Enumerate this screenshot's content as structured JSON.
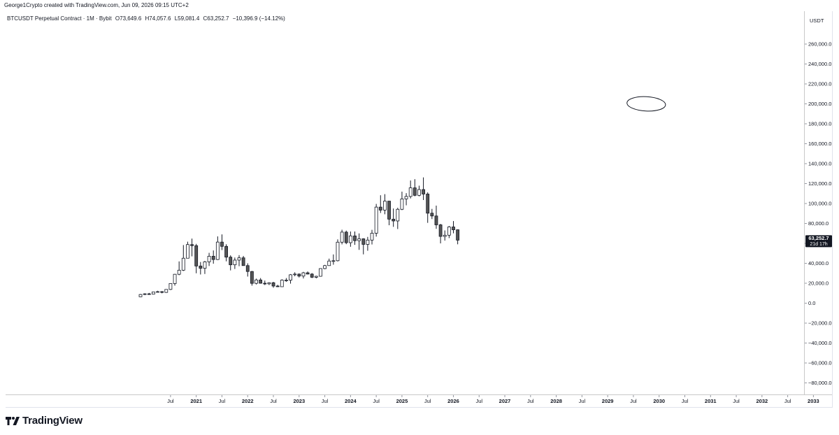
{
  "header": {
    "credit": "George1Crypto created with TradingView.com, Jun 09, 2026 09:15 UTC+2"
  },
  "legend": {
    "symbol": "BTCUSDT Perpetual Contract · 1M · Bybit",
    "open": "O73,649.6",
    "high": "H74,057.6",
    "low": "L59,081.4",
    "close": "C63,252.7",
    "change": "−10,396.9 (−14.12%)"
  },
  "price_axis": {
    "unit": "USDT",
    "last_price": "63,252.7",
    "countdown": "21d 17h"
  },
  "brand": {
    "name": "TradingView"
  },
  "colors": {
    "accent": "#131722",
    "up_fill": "#ffffff",
    "down_fill": "#555555",
    "axis_line": "#c8c8c8"
  },
  "chart_data": {
    "type": "candlestick",
    "ylim": [
      -90000,
      270000
    ],
    "y_ticks": [
      260000,
      240000,
      220000,
      200000,
      180000,
      160000,
      140000,
      120000,
      100000,
      80000,
      60000,
      40000,
      20000,
      0,
      -20000,
      -40000,
      -60000,
      -80000
    ],
    "y_tick_labels": [
      "260,000.0",
      "240,000.0",
      "220,000.0",
      "200,000.0",
      "180,000.0",
      "160,000.0",
      "140,000.0",
      "120,000.0",
      "100,000.0",
      "80,000.0",
      "60,000.0",
      "40,000.0",
      "20,000.0",
      "0.0",
      "−20,000.0",
      "−40,000.0",
      "−60,000.0",
      "−80,000.0"
    ],
    "x_start": "2020-04",
    "x_end": "2033-03",
    "x_ticks": [
      {
        "label": "Jul",
        "date": "2020-07"
      },
      {
        "label": "2021",
        "date": "2021-01"
      },
      {
        "label": "Jul",
        "date": "2021-07"
      },
      {
        "label": "2022",
        "date": "2022-01"
      },
      {
        "label": "Jul",
        "date": "2022-07"
      },
      {
        "label": "2023",
        "date": "2023-01"
      },
      {
        "label": "Jul",
        "date": "2023-07"
      },
      {
        "label": "2024",
        "date": "2024-01"
      },
      {
        "label": "Jul",
        "date": "2024-07"
      },
      {
        "label": "2025",
        "date": "2025-01"
      },
      {
        "label": "Jul",
        "date": "2025-07"
      },
      {
        "label": "2026",
        "date": "2026-01"
      },
      {
        "label": "Jul",
        "date": "2026-07"
      },
      {
        "label": "2027",
        "date": "2027-01"
      },
      {
        "label": "Jul",
        "date": "2027-07"
      },
      {
        "label": "2028",
        "date": "2028-01"
      },
      {
        "label": "Jul",
        "date": "2028-07"
      },
      {
        "label": "2029",
        "date": "2029-01"
      },
      {
        "label": "Jul",
        "date": "2029-07"
      },
      {
        "label": "2030",
        "date": "2030-01"
      },
      {
        "label": "Jul",
        "date": "2030-07"
      },
      {
        "label": "2031",
        "date": "2031-01"
      },
      {
        "label": "Jul",
        "date": "2031-07"
      },
      {
        "label": "2032",
        "date": "2032-01"
      },
      {
        "label": "Jul",
        "date": "2032-07"
      },
      {
        "label": "2033",
        "date": "2033-01"
      }
    ],
    "candles": [
      {
        "date": "2020-04",
        "o": 6400,
        "h": 9200,
        "l": 6200,
        "c": 8700
      },
      {
        "date": "2020-05",
        "o": 8700,
        "h": 10000,
        "l": 8100,
        "c": 9400
      },
      {
        "date": "2020-06",
        "o": 9400,
        "h": 10300,
        "l": 8900,
        "c": 9100
      },
      {
        "date": "2020-07",
        "o": 9100,
        "h": 11400,
        "l": 8900,
        "c": 11300
      },
      {
        "date": "2020-08",
        "o": 11300,
        "h": 12400,
        "l": 10600,
        "c": 11600
      },
      {
        "date": "2020-09",
        "o": 11600,
        "h": 12000,
        "l": 9900,
        "c": 10800
      },
      {
        "date": "2020-10",
        "o": 10800,
        "h": 14000,
        "l": 10400,
        "c": 13800
      },
      {
        "date": "2020-11",
        "o": 13800,
        "h": 19900,
        "l": 13200,
        "c": 19700
      },
      {
        "date": "2020-12",
        "o": 19700,
        "h": 29300,
        "l": 17600,
        "c": 29000
      },
      {
        "date": "2021-01",
        "o": 29000,
        "h": 41900,
        "l": 28100,
        "c": 33100
      },
      {
        "date": "2021-02",
        "o": 33100,
        "h": 58300,
        "l": 32300,
        "c": 45100
      },
      {
        "date": "2021-03",
        "o": 45100,
        "h": 61700,
        "l": 44900,
        "c": 58800
      },
      {
        "date": "2021-04",
        "o": 58800,
        "h": 64800,
        "l": 47000,
        "c": 57700
      },
      {
        "date": "2021-05",
        "o": 57700,
        "h": 59500,
        "l": 30000,
        "c": 37300
      },
      {
        "date": "2021-06",
        "o": 37300,
        "h": 41300,
        "l": 28800,
        "c": 35000
      },
      {
        "date": "2021-07",
        "o": 35000,
        "h": 42400,
        "l": 29300,
        "c": 41500
      },
      {
        "date": "2021-08",
        "o": 41500,
        "h": 50500,
        "l": 37300,
        "c": 47100
      },
      {
        "date": "2021-09",
        "o": 47100,
        "h": 52900,
        "l": 39600,
        "c": 43800
      },
      {
        "date": "2021-10",
        "o": 43800,
        "h": 67000,
        "l": 43300,
        "c": 61300
      },
      {
        "date": "2021-11",
        "o": 61300,
        "h": 69000,
        "l": 53300,
        "c": 57000
      },
      {
        "date": "2021-12",
        "o": 57000,
        "h": 59100,
        "l": 42000,
        "c": 46200
      },
      {
        "date": "2022-01",
        "o": 46200,
        "h": 48000,
        "l": 32900,
        "c": 38500
      },
      {
        "date": "2022-02",
        "o": 38500,
        "h": 45800,
        "l": 34300,
        "c": 43200
      },
      {
        "date": "2022-03",
        "o": 43200,
        "h": 48200,
        "l": 37100,
        "c": 45500
      },
      {
        "date": "2022-04",
        "o": 45500,
        "h": 47400,
        "l": 37600,
        "c": 37700
      },
      {
        "date": "2022-05",
        "o": 37700,
        "h": 40000,
        "l": 26700,
        "c": 31800
      },
      {
        "date": "2022-06",
        "o": 31800,
        "h": 32300,
        "l": 17600,
        "c": 19900
      },
      {
        "date": "2022-07",
        "o": 19900,
        "h": 24600,
        "l": 18800,
        "c": 23300
      },
      {
        "date": "2022-08",
        "o": 23300,
        "h": 25200,
        "l": 19600,
        "c": 20000
      },
      {
        "date": "2022-09",
        "o": 20000,
        "h": 22700,
        "l": 18200,
        "c": 19400
      },
      {
        "date": "2022-10",
        "o": 19400,
        "h": 21000,
        "l": 18200,
        "c": 20500
      },
      {
        "date": "2022-11",
        "o": 20500,
        "h": 21400,
        "l": 15500,
        "c": 17200
      },
      {
        "date": "2022-12",
        "o": 17200,
        "h": 18400,
        "l": 16300,
        "c": 16500
      },
      {
        "date": "2023-01",
        "o": 16500,
        "h": 23900,
        "l": 16500,
        "c": 23100
      },
      {
        "date": "2023-02",
        "o": 23100,
        "h": 25200,
        "l": 21400,
        "c": 23100
      },
      {
        "date": "2023-03",
        "o": 23100,
        "h": 29200,
        "l": 19600,
        "c": 28500
      },
      {
        "date": "2023-04",
        "o": 28500,
        "h": 31000,
        "l": 27000,
        "c": 29200
      },
      {
        "date": "2023-05",
        "o": 29200,
        "h": 29800,
        "l": 25800,
        "c": 27200
      },
      {
        "date": "2023-06",
        "o": 27200,
        "h": 31400,
        "l": 24800,
        "c": 30500
      },
      {
        "date": "2023-07",
        "o": 30500,
        "h": 31800,
        "l": 28900,
        "c": 29200
      },
      {
        "date": "2023-08",
        "o": 29200,
        "h": 30200,
        "l": 25200,
        "c": 26000
      },
      {
        "date": "2023-09",
        "o": 26000,
        "h": 27500,
        "l": 24900,
        "c": 27000
      },
      {
        "date": "2023-10",
        "o": 27000,
        "h": 35000,
        "l": 26600,
        "c": 34700
      },
      {
        "date": "2023-11",
        "o": 34700,
        "h": 38400,
        "l": 34100,
        "c": 37700
      },
      {
        "date": "2023-12",
        "o": 37700,
        "h": 44700,
        "l": 37600,
        "c": 42300
      },
      {
        "date": "2024-01",
        "o": 42300,
        "h": 48900,
        "l": 38600,
        "c": 42600
      },
      {
        "date": "2024-02",
        "o": 42600,
        "h": 64000,
        "l": 41900,
        "c": 61200
      },
      {
        "date": "2024-03",
        "o": 61200,
        "h": 73700,
        "l": 59000,
        "c": 71300
      },
      {
        "date": "2024-04",
        "o": 71300,
        "h": 72800,
        "l": 59200,
        "c": 60700
      },
      {
        "date": "2024-05",
        "o": 60700,
        "h": 71900,
        "l": 56600,
        "c": 67500
      },
      {
        "date": "2024-06",
        "o": 67500,
        "h": 71900,
        "l": 58500,
        "c": 62700
      },
      {
        "date": "2024-07",
        "o": 62700,
        "h": 70000,
        "l": 53500,
        "c": 64600
      },
      {
        "date": "2024-08",
        "o": 64600,
        "h": 65100,
        "l": 49000,
        "c": 59000
      },
      {
        "date": "2024-09",
        "o": 59000,
        "h": 66500,
        "l": 52600,
        "c": 63300
      },
      {
        "date": "2024-10",
        "o": 63300,
        "h": 73600,
        "l": 58900,
        "c": 70200
      },
      {
        "date": "2024-11",
        "o": 70200,
        "h": 99600,
        "l": 66800,
        "c": 96400
      },
      {
        "date": "2024-12",
        "o": 96400,
        "h": 108300,
        "l": 90500,
        "c": 93400
      },
      {
        "date": "2025-01",
        "o": 93400,
        "h": 109400,
        "l": 89200,
        "c": 102400
      },
      {
        "date": "2025-02",
        "o": 102400,
        "h": 102500,
        "l": 78200,
        "c": 84300
      },
      {
        "date": "2025-03",
        "o": 84300,
        "h": 95000,
        "l": 76600,
        "c": 82500
      },
      {
        "date": "2025-04",
        "o": 82500,
        "h": 95700,
        "l": 74400,
        "c": 94200
      },
      {
        "date": "2025-05",
        "o": 94200,
        "h": 111900,
        "l": 93400,
        "c": 104600
      },
      {
        "date": "2025-06",
        "o": 104600,
        "h": 110400,
        "l": 98200,
        "c": 107100
      },
      {
        "date": "2025-07",
        "o": 107100,
        "h": 123100,
        "l": 105100,
        "c": 115700
      },
      {
        "date": "2025-08",
        "o": 115700,
        "h": 124400,
        "l": 107300,
        "c": 108200
      },
      {
        "date": "2025-09",
        "o": 108200,
        "h": 117900,
        "l": 107200,
        "c": 114000
      },
      {
        "date": "2025-10",
        "o": 114000,
        "h": 126200,
        "l": 103500,
        "c": 109500
      },
      {
        "date": "2025-11",
        "o": 109500,
        "h": 111200,
        "l": 80600,
        "c": 90300
      },
      {
        "date": "2025-12",
        "o": 90300,
        "h": 94600,
        "l": 84400,
        "c": 87500
      },
      {
        "date": "2026-01",
        "o": 87500,
        "h": 97900,
        "l": 74600,
        "c": 78600
      },
      {
        "date": "2026-02",
        "o": 78600,
        "h": 79500,
        "l": 60000,
        "c": 67000
      },
      {
        "date": "2026-03",
        "o": 67000,
        "h": 73000,
        "l": 62800,
        "c": 68200
      },
      {
        "date": "2026-04",
        "o": 68200,
        "h": 77400,
        "l": 65300,
        "c": 76500
      },
      {
        "date": "2026-05",
        "o": 76500,
        "h": 82400,
        "l": 70100,
        "c": 73649.6
      },
      {
        "date": "2026-06",
        "o": 73649.6,
        "h": 74057.6,
        "l": 59081.4,
        "c": 63252.7
      }
    ],
    "annotations": [
      {
        "type": "ellipse",
        "center_date": "2029-10",
        "center_value": 200000,
        "width_months": 9,
        "height_value": 13000
      }
    ]
  }
}
